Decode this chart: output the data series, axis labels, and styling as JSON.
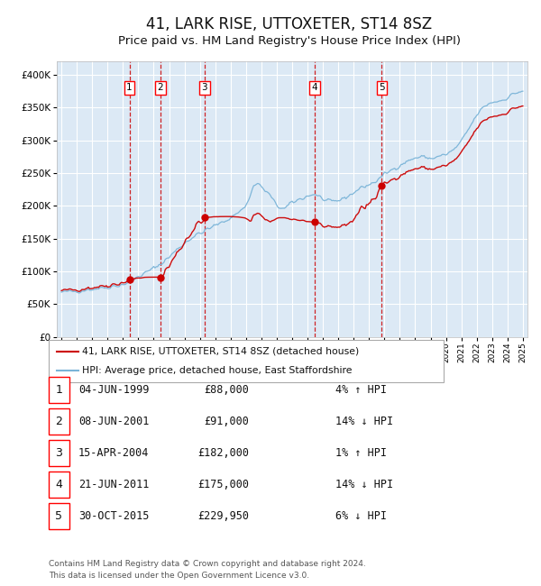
{
  "title": "41, LARK RISE, UTTOXETER, ST14 8SZ",
  "subtitle": "Price paid vs. HM Land Registry's House Price Index (HPI)",
  "legend_line1": "41, LARK RISE, UTTOXETER, ST14 8SZ (detached house)",
  "legend_line2": "HPI: Average price, detached house, East Staffordshire",
  "footer1": "Contains HM Land Registry data © Crown copyright and database right 2024.",
  "footer2": "This data is licensed under the Open Government Licence v3.0.",
  "transactions": [
    {
      "num": 1,
      "date": "04-JUN-1999",
      "price": 88000,
      "pct": "4%",
      "dir": "↑",
      "year": 1999.42
    },
    {
      "num": 2,
      "date": "08-JUN-2001",
      "price": 91000,
      "pct": "14%",
      "dir": "↓",
      "year": 2001.43
    },
    {
      "num": 3,
      "date": "15-APR-2004",
      "price": 182000,
      "pct": "1%",
      "dir": "↑",
      "year": 2004.29
    },
    {
      "num": 4,
      "date": "21-JUN-2011",
      "price": 175000,
      "pct": "14%",
      "dir": "↓",
      "year": 2011.47
    },
    {
      "num": 5,
      "date": "30-OCT-2015",
      "price": 229950,
      "pct": "6%",
      "dir": "↓",
      "year": 2015.83
    }
  ],
  "hpi_anchors": [
    [
      1995.0,
      68000
    ],
    [
      1996.0,
      70000
    ],
    [
      1997.0,
      73000
    ],
    [
      1998.0,
      76000
    ],
    [
      1999.0,
      80000
    ],
    [
      1999.5,
      85000
    ],
    [
      2000.0,
      92000
    ],
    [
      2000.5,
      98000
    ],
    [
      2001.0,
      105000
    ],
    [
      2001.5,
      112000
    ],
    [
      2002.0,
      122000
    ],
    [
      2002.5,
      133000
    ],
    [
      2003.0,
      143000
    ],
    [
      2003.5,
      152000
    ],
    [
      2004.0,
      158000
    ],
    [
      2004.5,
      164000
    ],
    [
      2005.0,
      170000
    ],
    [
      2005.5,
      175000
    ],
    [
      2006.0,
      182000
    ],
    [
      2006.5,
      190000
    ],
    [
      2007.0,
      200000
    ],
    [
      2007.5,
      230000
    ],
    [
      2007.8,
      235000
    ],
    [
      2008.0,
      228000
    ],
    [
      2008.5,
      218000
    ],
    [
      2009.0,
      200000
    ],
    [
      2009.5,
      195000
    ],
    [
      2010.0,
      205000
    ],
    [
      2010.5,
      210000
    ],
    [
      2011.0,
      215000
    ],
    [
      2011.5,
      218000
    ],
    [
      2012.0,
      210000
    ],
    [
      2012.5,
      205000
    ],
    [
      2013.0,
      208000
    ],
    [
      2013.5,
      213000
    ],
    [
      2014.0,
      220000
    ],
    [
      2014.5,
      228000
    ],
    [
      2015.0,
      232000
    ],
    [
      2015.5,
      238000
    ],
    [
      2016.0,
      248000
    ],
    [
      2016.5,
      255000
    ],
    [
      2017.0,
      262000
    ],
    [
      2017.5,
      268000
    ],
    [
      2018.0,
      273000
    ],
    [
      2018.5,
      275000
    ],
    [
      2019.0,
      272000
    ],
    [
      2019.5,
      275000
    ],
    [
      2020.0,
      278000
    ],
    [
      2020.5,
      285000
    ],
    [
      2021.0,
      298000
    ],
    [
      2021.5,
      318000
    ],
    [
      2022.0,
      338000
    ],
    [
      2022.5,
      352000
    ],
    [
      2023.0,
      358000
    ],
    [
      2023.5,
      360000
    ],
    [
      2024.0,
      365000
    ],
    [
      2024.5,
      372000
    ],
    [
      2025.0,
      375000
    ]
  ],
  "ylim": [
    0,
    420000
  ],
  "yticks": [
    0,
    50000,
    100000,
    150000,
    200000,
    250000,
    300000,
    350000,
    400000
  ],
  "xlim_start": 1994.7,
  "xlim_end": 2025.3,
  "background_color": "#dce9f5",
  "hpi_color": "#7ab4d8",
  "price_color": "#cc0000",
  "vline_color": "#cc0000",
  "grid_color": "#ffffff",
  "title_fontsize": 12,
  "subtitle_fontsize": 10
}
